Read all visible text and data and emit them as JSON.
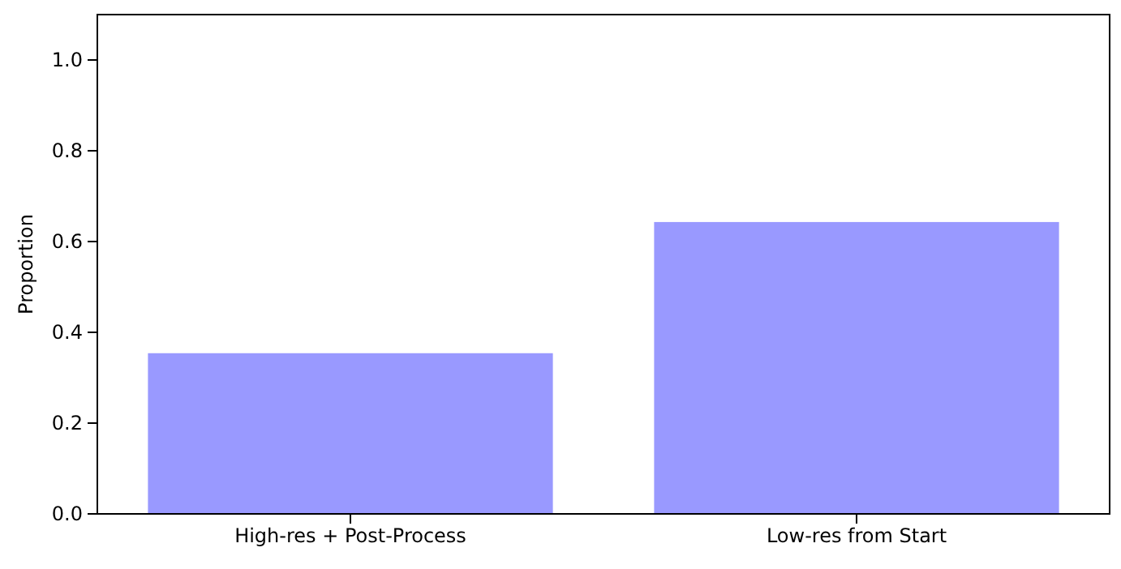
{
  "chart_data": {
    "type": "bar",
    "ylabel": "Proportion",
    "categories": [
      "High-res + Post-Process",
      "Low-res from Start"
    ],
    "values": [
      0.354,
      0.643
    ],
    "color": "#9999ff",
    "ylim": [
      0,
      1.1
    ],
    "yticks": [
      {
        "value": 0,
        "label": "0.0"
      },
      {
        "value": 0.2,
        "label": "0.2"
      },
      {
        "value": 0.4,
        "label": "0.4"
      },
      {
        "value": 0.6,
        "label": "0.6"
      },
      {
        "value": 0.8,
        "label": "0.8"
      },
      {
        "value": 1,
        "label": "1.0"
      }
    ]
  }
}
